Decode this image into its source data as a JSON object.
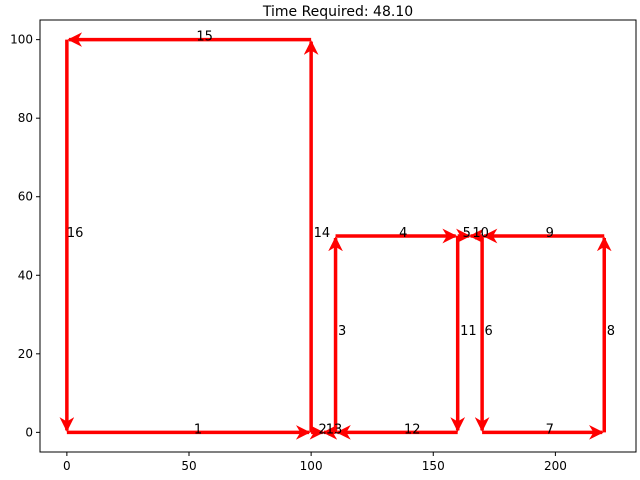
{
  "chart_data": {
    "type": "line",
    "title": "Time Required: 48.10",
    "xlabel": "",
    "ylabel": "",
    "xlim": [
      -11,
      233
    ],
    "ylim": [
      -5,
      105
    ],
    "xticks": [
      0,
      50,
      100,
      150,
      200
    ],
    "yticks": [
      0,
      20,
      40,
      60,
      80,
      100
    ],
    "grid": false,
    "segment_color": "#ff0000",
    "node_color": "#808080",
    "segments": [
      {
        "label": "1",
        "from": [
          0,
          0
        ],
        "to": [
          100,
          0
        ]
      },
      {
        "label": "2",
        "from": [
          100,
          0
        ],
        "to": [
          105,
          0
        ]
      },
      {
        "label": "3",
        "from": [
          110,
          0
        ],
        "to": [
          110,
          50
        ]
      },
      {
        "label": "4",
        "from": [
          110,
          50
        ],
        "to": [
          160,
          50
        ]
      },
      {
        "label": "5",
        "from": [
          160,
          50
        ],
        "to": [
          165,
          50
        ]
      },
      {
        "label": "6",
        "from": [
          170,
          50
        ],
        "to": [
          170,
          0
        ]
      },
      {
        "label": "7",
        "from": [
          170,
          0
        ],
        "to": [
          220,
          0
        ]
      },
      {
        "label": "8",
        "from": [
          220,
          0
        ],
        "to": [
          220,
          50
        ]
      },
      {
        "label": "9",
        "from": [
          220,
          50
        ],
        "to": [
          170,
          50
        ]
      },
      {
        "label": "10",
        "from": [
          170,
          50
        ],
        "to": [
          165,
          50
        ]
      },
      {
        "label": "11",
        "from": [
          160,
          50
        ],
        "to": [
          160,
          0
        ]
      },
      {
        "label": "12",
        "from": [
          160,
          0
        ],
        "to": [
          110,
          0
        ]
      },
      {
        "label": "13",
        "from": [
          110,
          0
        ],
        "to": [
          105,
          0
        ]
      },
      {
        "label": "14",
        "from": [
          100,
          0
        ],
        "to": [
          100,
          100
        ]
      },
      {
        "label": "15",
        "from": [
          100,
          100
        ],
        "to": [
          0,
          100
        ]
      },
      {
        "label": "16",
        "from": [
          0,
          100
        ],
        "to": [
          0,
          0
        ]
      }
    ],
    "segment_label_positions": {
      "1": [
        52,
        0
      ],
      "2": [
        103,
        0
      ],
      "3": [
        111,
        25
      ],
      "4": [
        136,
        50
      ],
      "5": [
        162,
        50
      ],
      "6": [
        171,
        25
      ],
      "7": [
        196,
        0
      ],
      "8": [
        221,
        25
      ],
      "9": [
        196,
        50
      ],
      "10": [
        166,
        50
      ],
      "11": [
        161,
        25
      ],
      "12": [
        138,
        0
      ],
      "13": [
        106,
        0
      ],
      "14": [
        101,
        50
      ],
      "15": [
        53,
        100
      ],
      "16": [
        0,
        50
      ]
    },
    "connectors": [
      {
        "from": [
          100,
          0
        ],
        "to": [
          110,
          0
        ]
      },
      {
        "from": [
          160,
          50
        ],
        "to": [
          170,
          50
        ]
      }
    ]
  }
}
